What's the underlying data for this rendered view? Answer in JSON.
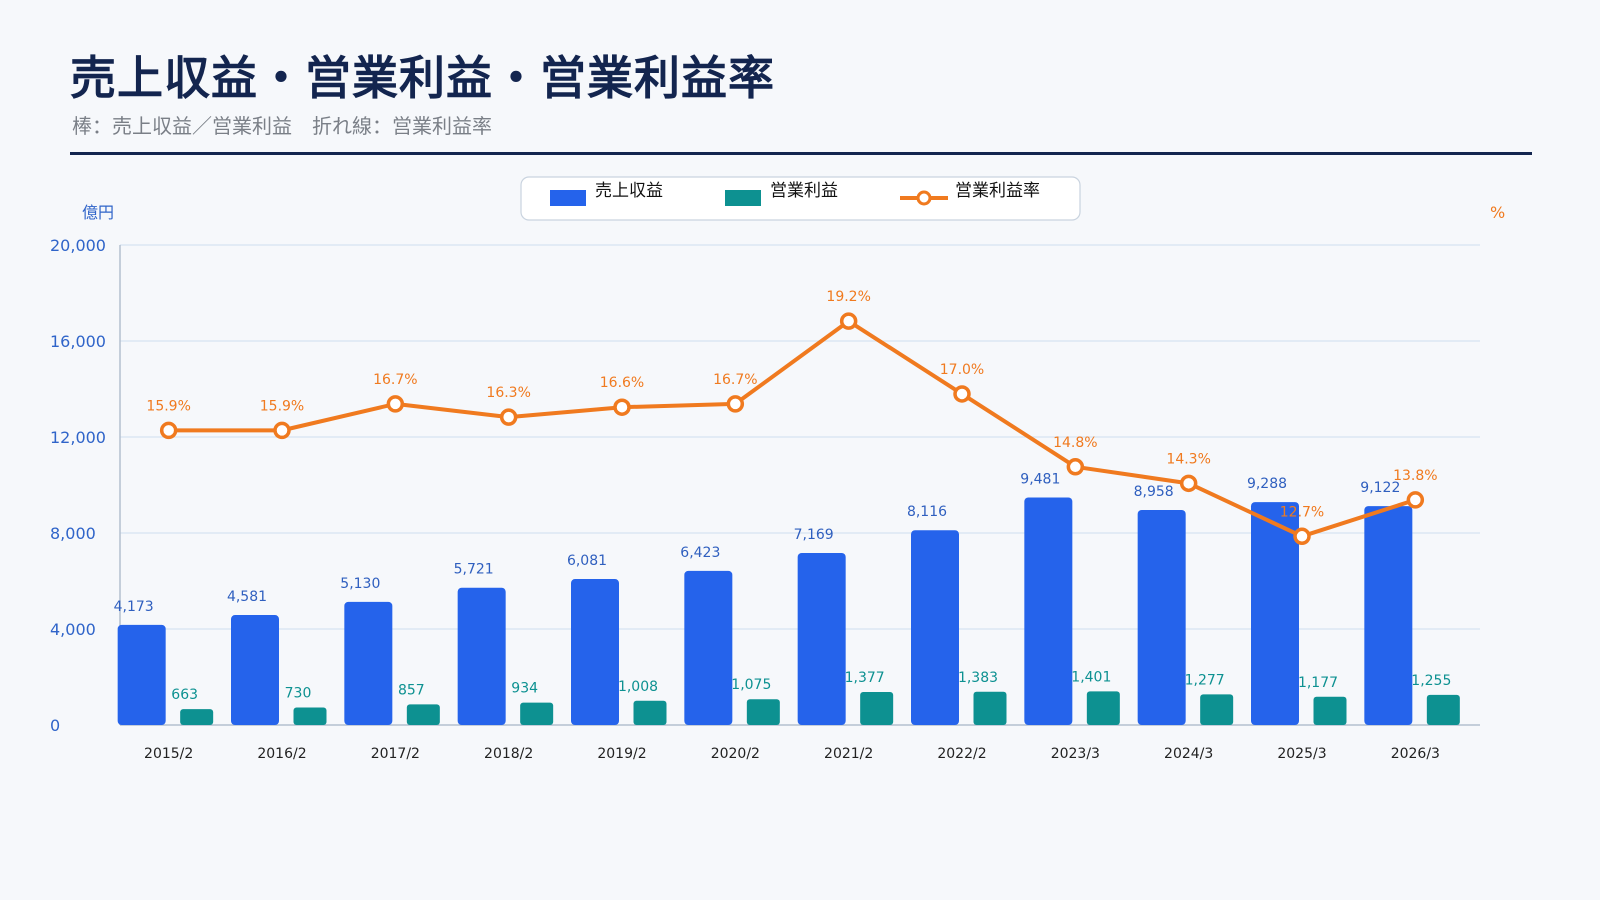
{
  "title": "売上収益・営業利益・営業利益率",
  "subtitle": "棒：売上収益／営業利益　折れ線：営業利益率",
  "colors": {
    "revenue": "#2563eb",
    "profit": "#0d9191",
    "margin": "#f07a1f",
    "axis_left": "#2f64c9",
    "grid": "#d5e3f1"
  },
  "chart_data": {
    "type": "bar",
    "categories": [
      "2015/2",
      "2016/2",
      "2017/2",
      "2018/2",
      "2019/2",
      "2020/2",
      "2021/2",
      "2022/2",
      "2023/3",
      "2024/3",
      "2025/3",
      "2026/3"
    ],
    "series": [
      {
        "name": "売上収益",
        "type": "bar",
        "axis": "left",
        "values": [
          4173,
          4581,
          5130,
          5721,
          6081,
          6423,
          7169,
          8116,
          9481,
          8958,
          9288,
          9122
        ],
        "labels": [
          "4,173",
          "4,581",
          "5,130",
          "5,721",
          "6,081",
          "6,423",
          "7,169",
          "8,116",
          "9,481",
          "8,958",
          "9,288",
          "9,122"
        ]
      },
      {
        "name": "営業利益",
        "type": "bar",
        "axis": "left",
        "values": [
          663,
          730,
          857,
          934,
          1008,
          1075,
          1377,
          1383,
          1401,
          1277,
          1177,
          1255
        ],
        "labels": [
          "663",
          "730",
          "857",
          "934",
          "1,008",
          "1,075",
          "1,377",
          "1,383",
          "1,401",
          "1,277",
          "1,177",
          "1,255"
        ]
      },
      {
        "name": "営業利益率",
        "type": "line",
        "axis": "right",
        "values": [
          15.9,
          15.9,
          16.7,
          16.3,
          16.6,
          16.7,
          19.2,
          17.0,
          14.8,
          14.3,
          12.7,
          13.8
        ],
        "labels": [
          "15.9%",
          "15.9%",
          "16.7%",
          "16.3%",
          "16.6%",
          "16.7%",
          "19.2%",
          "17.0%",
          "14.8%",
          "14.3%",
          "12.7%",
          "13.8%"
        ]
      }
    ],
    "ylabel": "億円",
    "y2label": "%",
    "ylim": [
      0,
      20000
    ],
    "yticks": [
      0,
      4000,
      8000,
      12000,
      16000,
      20000
    ],
    "ytick_labels": [
      "0",
      "4,000",
      "8,000",
      "12,000",
      "16,000",
      "20,000"
    ],
    "y2lim": [
      7,
      21.5
    ],
    "grid": true,
    "legend": "top-center"
  }
}
